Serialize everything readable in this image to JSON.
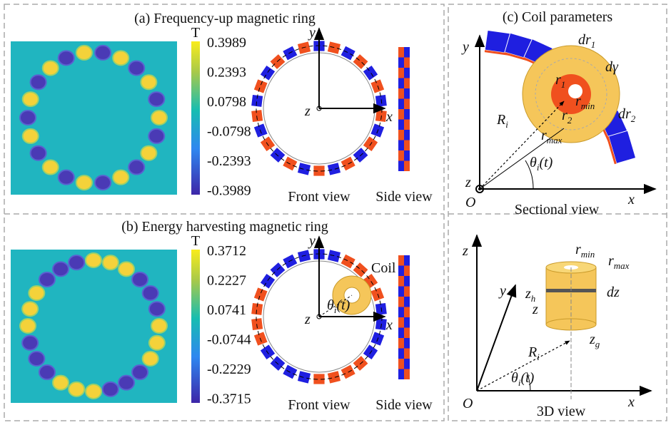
{
  "panel_a": {
    "title": "(a) Frequency-up magnetic ring",
    "colorbar": {
      "unit": "T",
      "ticks": [
        "0.3989",
        "0.2393",
        "0.0798",
        "-0.0798",
        "-0.2393",
        "-0.3989"
      ]
    },
    "axes": {
      "y": "y",
      "z": "z",
      "x": "x"
    },
    "front_label": "Front view",
    "side_label": "Side view"
  },
  "panel_b": {
    "title": "(b) Energy harvesting magnetic ring",
    "colorbar": {
      "unit": "T",
      "ticks": [
        "0.3712",
        "0.2227",
        "0.0741",
        "-0.0744",
        "-0.2229",
        "-0.3715"
      ]
    },
    "axes": {
      "y": "y",
      "z": "z",
      "x": "x"
    },
    "coil": "Coil",
    "angle": {
      "base": "θ",
      "sub": "i",
      "tail": "(t)"
    },
    "front_label": "Front view",
    "side_label": "Side view"
  },
  "panel_c": {
    "title": "(c) Coil parameters",
    "sectional": {
      "y": "y",
      "x": "x",
      "z": "z",
      "origin": "O",
      "radius": {
        "base": "R",
        "sub": "i"
      },
      "angle": {
        "base": "θ",
        "sub": "i",
        "tail": "(t)"
      },
      "dr1": {
        "base": "dr",
        "sub": "1"
      },
      "dgamma": "dγ",
      "r1": {
        "base": "r",
        "sub": "1"
      },
      "r2": {
        "base": "r",
        "sub": "2"
      },
      "rmin": {
        "base": "r",
        "sub": "min"
      },
      "rmax": {
        "base": "r",
        "sub": "max"
      },
      "dr2": {
        "base": "dr",
        "sub": "2"
      },
      "label": "Sectional view"
    },
    "view3d": {
      "z_axis": "z",
      "y": "y",
      "x": "x",
      "origin": "O",
      "rmin": {
        "base": "r",
        "sub": "min"
      },
      "rmax": {
        "base": "r",
        "sub": "max"
      },
      "zh": {
        "base": "z",
        "sub": "h"
      },
      "z": "z",
      "dz": "dz",
      "zg": {
        "base": "z",
        "sub": "g"
      },
      "radius": {
        "base": "R",
        "sub": "i"
      },
      "angle": {
        "base": "θ",
        "sub": "i",
        "tail": "(t)"
      },
      "label": "3D view"
    }
  }
}
